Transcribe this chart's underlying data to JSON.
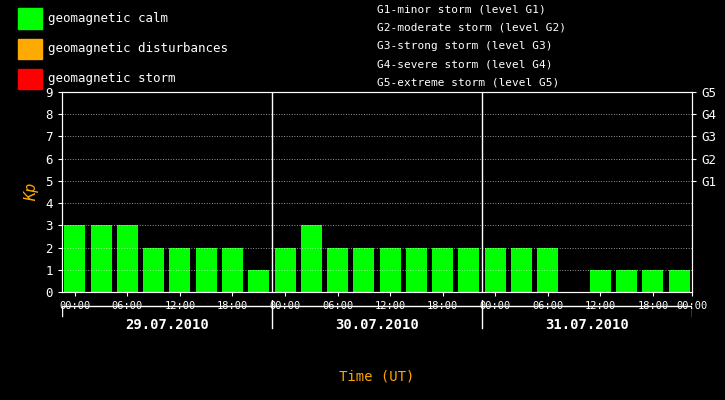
{
  "background_color": "#000000",
  "bar_color": "#00ff00",
  "text_color": "#ffffff",
  "orange_color": "#ffa500",
  "legend_left": [
    [
      "#00ff00",
      "geomagnetic calm"
    ],
    [
      "#ffaa00",
      "geomagnetic disturbances"
    ],
    [
      "#ff0000",
      "geomagnetic storm"
    ]
  ],
  "legend_right": [
    "G1-minor storm (level G1)",
    "G2-moderate storm (level G2)",
    "G3-strong storm (level G3)",
    "G4-severe storm (level G4)",
    "G5-extreme storm (level G5)"
  ],
  "days": [
    "29.07.2010",
    "30.07.2010",
    "31.07.2010"
  ],
  "kp_values": [
    [
      3,
      3,
      3,
      2,
      2,
      2,
      2,
      1
    ],
    [
      2,
      3,
      2,
      2,
      2,
      2,
      2,
      2
    ],
    [
      2,
      2,
      2,
      0,
      1,
      1,
      1,
      1
    ]
  ],
  "ylim": [
    0,
    9
  ],
  "yticks_left": [
    0,
    1,
    2,
    3,
    4,
    5,
    6,
    7,
    8,
    9
  ],
  "yticks_right_pos": [
    9,
    8,
    7,
    6,
    5
  ],
  "yticks_right_labels": [
    "G5",
    "G4",
    "G3",
    "G2",
    "G1"
  ],
  "ylabel": "Kp",
  "xlabel": "Time (UT)",
  "grid_color": "#ffffff",
  "separator_color": "#ffffff",
  "font_family": "monospace",
  "bar_width": 0.8,
  "n_bars_per_day": 8,
  "hour_ticks": [
    0,
    2,
    4,
    6
  ],
  "hour_labels": [
    "00:00",
    "06:00",
    "12:00",
    "18:00"
  ],
  "final_tick_label": "00:00"
}
